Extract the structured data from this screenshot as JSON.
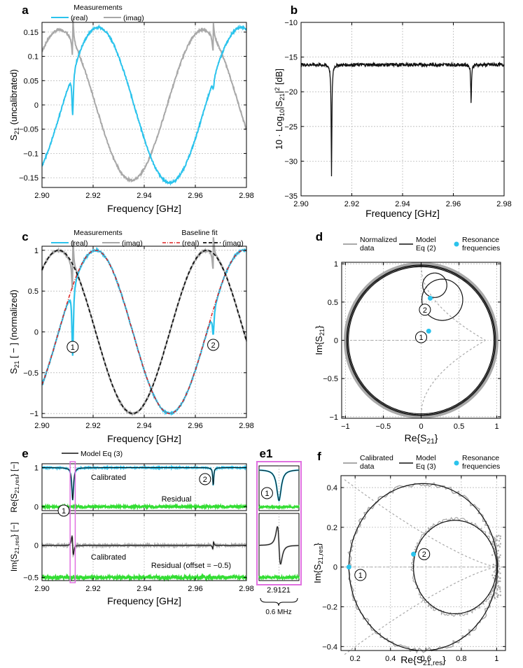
{
  "colors": {
    "real": "#2bc3ec",
    "imag": "#a8a8a8",
    "black": "#111111",
    "red": "#dd2222",
    "green": "#33dd33",
    "magenta": "#e070e0",
    "grid": "#bbbbbb",
    "gray": "#a9a9a9"
  },
  "chart_data": [
    {
      "id": "a",
      "panel_label": "a",
      "type": "line",
      "title": "",
      "xlabel": "Frequency [GHz]",
      "ylabel": "S21 (uncalibrated)",
      "xlim": [
        2.9,
        2.98
      ],
      "ylim": [
        -0.17,
        0.17
      ],
      "xticks": [
        "2.90",
        "2.92",
        "2.94",
        "2.96",
        "2.98"
      ],
      "yticks": [
        "-0.15",
        "-0.1",
        "-0.05",
        "0",
        "0.05",
        "0.1",
        "0.15"
      ],
      "legend": {
        "title": "Measurements",
        "entries": [
          "(real)",
          "(imag)"
        ]
      },
      "series": [
        {
          "name": "real",
          "description": "sinusoid amplitude ~0.16, max at 2.922 GHz, min at 2.950 GHz, resonance dips at 2.912 and 2.967 GHz"
        },
        {
          "name": "imag",
          "description": "sinusoid amplitude ~0.155, max at 2.907/2.964 GHz, min at 2.935 GHz"
        }
      ]
    },
    {
      "id": "b",
      "panel_label": "b",
      "type": "line",
      "xlabel": "Frequency [GHz]",
      "ylabel": "10 · Log10|S21|² [dB]",
      "xlim": [
        2.9,
        2.98
      ],
      "ylim": [
        -35,
        -10
      ],
      "xticks": [
        "2.90",
        "2.92",
        "2.94",
        "2.96",
        "2.98"
      ],
      "yticks": [
        "-10",
        "-15",
        "-20",
        "-25",
        "-30",
        "-35"
      ],
      "series": [
        {
          "name": "power",
          "baseline_db": -16.1,
          "dips": [
            {
              "x": 2.912,
              "y": -32
            },
            {
              "x": 2.967,
              "y": -21.5
            }
          ]
        }
      ]
    },
    {
      "id": "c",
      "panel_label": "c",
      "type": "line",
      "xlabel": "Frequency [GHz]",
      "ylabel": "S21 [ − ]  (normalized)",
      "xlim": [
        2.9,
        2.98
      ],
      "ylim": [
        -1.05,
        1.05
      ],
      "xticks": [
        "2.90",
        "2.92",
        "2.94",
        "2.96",
        "2.98"
      ],
      "yticks": [
        "-1",
        "-0.5",
        "0",
        "0.5",
        "1"
      ],
      "legend_left": {
        "title": "Measurements",
        "entries": [
          "(real)",
          "(imag)"
        ]
      },
      "legend_right": {
        "title": "Baseline fit",
        "entries": [
          "(real)",
          "(imag)"
        ]
      },
      "resonance_labels": [
        "①",
        "②"
      ]
    },
    {
      "id": "d",
      "panel_label": "d",
      "type": "scatter",
      "xlabel": "Re{S21}",
      "ylabel": "Im{S21}",
      "xlim": [
        -1,
        1
      ],
      "ylim": [
        -1,
        1
      ],
      "xticks": [
        "-1",
        "-0.5",
        "0",
        "0.5",
        "1"
      ],
      "yticks": [
        "-1",
        "-0.5",
        "0",
        "0.5",
        "1"
      ],
      "legend": [
        {
          "label": "Normalized data"
        },
        {
          "label": "Model Eq (2)"
        },
        {
          "label": "Resonance frequencies"
        }
      ],
      "resonance_points": [
        {
          "label": "①",
          "re": 0.1,
          "im": 0.12
        },
        {
          "label": "②",
          "re": 0.12,
          "im": 0.55
        }
      ]
    },
    {
      "id": "e",
      "panel_label": "e",
      "type": "line",
      "xlabel": "Frequency [GHz]",
      "xlim": [
        2.9,
        2.98
      ],
      "xticks": [
        "2.90",
        "2.92",
        "2.94",
        "2.96",
        "2.98"
      ],
      "legend": "Model Eq (3)",
      "top": {
        "ylabel": "Re{S21,res} [−]",
        "ylim": [
          -0.1,
          1.1
        ],
        "yticks": [
          "0",
          "1"
        ],
        "calibrated_label": "Calibrated",
        "residual_label": "Residual"
      },
      "bottom": {
        "ylabel": "Im{S21,res} [−]",
        "ylim": [
          -0.55,
          0.5
        ],
        "yticks": [
          "0",
          "-0.5"
        ],
        "calibrated_label": "Calibrated",
        "residual_label": "Residual (offset = −0.5)"
      },
      "resonance_labels": [
        "①",
        "②"
      ]
    },
    {
      "id": "e1",
      "panel_label": "e1",
      "type": "line",
      "xtick": "2.9121",
      "span_label": "0.6 MHz"
    },
    {
      "id": "f",
      "panel_label": "f",
      "type": "scatter",
      "xlabel": "Re{S21,res}",
      "ylabel": "Im{S21,res}",
      "xlim": [
        0.12,
        1.05
      ],
      "ylim": [
        -0.42,
        0.46
      ],
      "xticks": [
        "0.2",
        "0.4",
        "0.6",
        "0.8",
        "1"
      ],
      "yticks": [
        "0.4",
        "0.2",
        "0",
        "-0.2",
        "-0.4"
      ],
      "legend": [
        {
          "label": "Calibrated data"
        },
        {
          "label": "Model Eq (3)"
        },
        {
          "label": "Resonance frequencies"
        }
      ],
      "resonance_points": [
        {
          "label": "①",
          "re": 0.165,
          "im": 0.0
        },
        {
          "label": "②",
          "re": 0.53,
          "im": 0.065
        }
      ]
    }
  ]
}
